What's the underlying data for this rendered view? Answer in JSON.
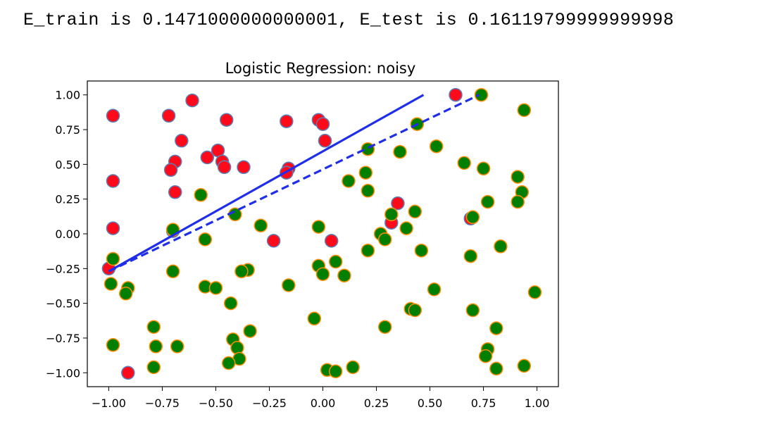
{
  "output": {
    "text": "E_train is 0.1471000000000001, E_test is 0.16119799999999998"
  },
  "colors": {
    "red_fill": "#ff0a1a",
    "red_edge": "#5a7fb8",
    "green_fill": "#007f00",
    "green_edge": "#ff8c00",
    "line": "#1f2ee8",
    "axes": "#000000"
  },
  "chart_data": {
    "type": "scatter",
    "title": "Logistic Regression: noisy",
    "xlabel": "",
    "ylabel": "",
    "xlim": [
      -1.1,
      1.1
    ],
    "ylim": [
      -1.1,
      1.1
    ],
    "x_ticks": [
      "−1.00",
      "−0.75",
      "−0.50",
      "−0.25",
      "0.00",
      "0.25",
      "0.50",
      "0.75",
      "1.00"
    ],
    "x_tick_values": [
      -1,
      -0.75,
      -0.5,
      -0.25,
      0,
      0.25,
      0.5,
      0.75,
      1
    ],
    "y_ticks": [
      "1.00",
      "0.75",
      "0.50",
      "0.25",
      "0.00",
      "−0.25",
      "−0.50",
      "−0.75",
      "−1.00"
    ],
    "y_tick_values": [
      1,
      0.75,
      0.5,
      0.25,
      0,
      -0.25,
      -0.5,
      -0.75,
      -1
    ],
    "grid": false,
    "series": [
      {
        "marker": "red",
        "points": [
          [
            -0.98,
            0.85
          ],
          [
            -0.72,
            0.85
          ],
          [
            -0.61,
            0.96
          ],
          [
            -0.45,
            0.82
          ],
          [
            -0.17,
            0.81
          ],
          [
            -0.02,
            0.82
          ],
          [
            0.0,
            0.79
          ],
          [
            0.01,
            0.67
          ],
          [
            0.62,
            1.0
          ],
          [
            -0.66,
            0.67
          ],
          [
            -0.69,
            0.52
          ],
          [
            -0.71,
            0.46
          ],
          [
            -0.49,
            0.6
          ],
          [
            -0.54,
            0.55
          ],
          [
            -0.47,
            0.52
          ],
          [
            -0.46,
            0.48
          ],
          [
            -0.37,
            0.48
          ],
          [
            -0.16,
            0.47
          ],
          [
            -0.17,
            0.44
          ],
          [
            -0.98,
            0.38
          ],
          [
            -0.69,
            0.3
          ],
          [
            -0.98,
            0.04
          ],
          [
            -0.7,
            0.02
          ],
          [
            -0.23,
            -0.05
          ],
          [
            -1.0,
            -0.25
          ],
          [
            -0.91,
            -1.0
          ],
          [
            0.35,
            0.22
          ],
          [
            0.32,
            0.08
          ],
          [
            0.69,
            0.11
          ],
          [
            0.04,
            -0.05
          ]
        ]
      },
      {
        "marker": "green",
        "points": [
          [
            0.74,
            1.0
          ],
          [
            0.94,
            0.89
          ],
          [
            0.44,
            0.79
          ],
          [
            0.53,
            0.63
          ],
          [
            0.21,
            0.61
          ],
          [
            0.36,
            0.59
          ],
          [
            0.66,
            0.51
          ],
          [
            0.75,
            0.47
          ],
          [
            0.2,
            0.44
          ],
          [
            0.12,
            0.38
          ],
          [
            0.91,
            0.41
          ],
          [
            0.21,
            0.31
          ],
          [
            0.93,
            0.3
          ],
          [
            0.91,
            0.23
          ],
          [
            0.77,
            0.23
          ],
          [
            -0.57,
            0.28
          ],
          [
            0.43,
            0.16
          ],
          [
            0.32,
            0.14
          ],
          [
            -0.41,
            0.14
          ],
          [
            0.7,
            0.12
          ],
          [
            -0.29,
            0.06
          ],
          [
            -0.02,
            0.05
          ],
          [
            0.39,
            0.04
          ],
          [
            -0.7,
            0.03
          ],
          [
            0.27,
            0.0
          ],
          [
            0.29,
            -0.04
          ],
          [
            -0.55,
            -0.04
          ],
          [
            0.21,
            -0.12
          ],
          [
            0.46,
            -0.12
          ],
          [
            0.69,
            -0.16
          ],
          [
            0.83,
            -0.09
          ],
          [
            -0.98,
            -0.18
          ],
          [
            0.06,
            -0.2
          ],
          [
            -0.02,
            -0.23
          ],
          [
            -0.35,
            -0.26
          ],
          [
            -0.38,
            -0.27
          ],
          [
            -0.7,
            -0.27
          ],
          [
            0.0,
            -0.29
          ],
          [
            0.1,
            -0.3
          ],
          [
            -0.99,
            -0.36
          ],
          [
            -0.91,
            -0.39
          ],
          [
            -0.55,
            -0.38
          ],
          [
            -0.5,
            -0.39
          ],
          [
            -0.16,
            -0.37
          ],
          [
            -0.92,
            -0.43
          ],
          [
            0.52,
            -0.4
          ],
          [
            0.99,
            -0.42
          ],
          [
            -0.43,
            -0.5
          ],
          [
            0.41,
            -0.54
          ],
          [
            0.43,
            -0.55
          ],
          [
            0.7,
            -0.55
          ],
          [
            -0.04,
            -0.61
          ],
          [
            -0.79,
            -0.67
          ],
          [
            0.29,
            -0.67
          ],
          [
            0.81,
            -0.68
          ],
          [
            -0.34,
            -0.7
          ],
          [
            -0.42,
            -0.76
          ],
          [
            -0.78,
            -0.81
          ],
          [
            -0.98,
            -0.8
          ],
          [
            -0.68,
            -0.81
          ],
          [
            -0.4,
            -0.82
          ],
          [
            0.77,
            -0.83
          ],
          [
            0.76,
            -0.88
          ],
          [
            -0.39,
            -0.9
          ],
          [
            -0.44,
            -0.93
          ],
          [
            0.94,
            -0.95
          ],
          [
            -0.79,
            -0.96
          ],
          [
            0.14,
            -0.96
          ],
          [
            0.81,
            -0.97
          ],
          [
            0.02,
            -0.98
          ],
          [
            0.06,
            -0.99
          ]
        ]
      }
    ],
    "lines": [
      {
        "style": "solid",
        "points": [
          [
            -1.0,
            -0.27
          ],
          [
            0.47,
            1.0
          ]
        ]
      },
      {
        "style": "dashed",
        "points": [
          [
            -1.0,
            -0.27
          ],
          [
            0.73,
            1.0
          ]
        ]
      }
    ]
  }
}
